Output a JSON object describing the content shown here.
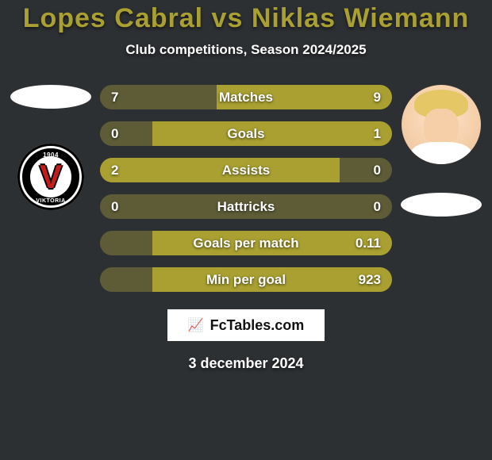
{
  "colors": {
    "background": "#2d3033",
    "title": "#a9a031",
    "subtitle_text": "#ffffff",
    "bar_full": "#a9a031",
    "bar_empty": "#5e5c36",
    "bar_label_text": "#ffffff",
    "bar_value_text": "#ffffff",
    "ellipse_fill": "#ffffff",
    "footer_border": "#2d3033",
    "date_text": "#ffffff"
  },
  "typography": {
    "title_fontsize": 34,
    "subtitle_fontsize": 17,
    "bar_label_fontsize": 17,
    "bar_value_fontsize": 17,
    "date_fontsize": 18
  },
  "header": {
    "title": "Lopes Cabral vs Niklas Wiemann",
    "subtitle": "Club competitions, Season 2024/2025"
  },
  "left_player": {
    "avatar": "blank-ellipse",
    "club": "Viktoria Köln",
    "club_year": "1904"
  },
  "right_player": {
    "avatar": "photo",
    "club_ellipse": "blank-ellipse"
  },
  "bars": [
    {
      "label": "Matches",
      "left_value": "7",
      "right_value": "9",
      "left_pct": 40,
      "right_pct": 60
    },
    {
      "label": "Goals",
      "left_value": "0",
      "right_value": "1",
      "left_pct": 18,
      "right_pct": 82
    },
    {
      "label": "Assists",
      "left_value": "2",
      "right_value": "0",
      "left_pct": 82,
      "right_pct": 18
    },
    {
      "label": "Hattricks",
      "left_value": "0",
      "right_value": "0",
      "left_pct": 50,
      "right_pct": 50
    },
    {
      "label": "Goals per match",
      "left_value": "",
      "right_value": "0.11",
      "left_pct": 18,
      "right_pct": 82
    },
    {
      "label": "Min per goal",
      "left_value": "",
      "right_value": "923",
      "left_pct": 18,
      "right_pct": 82
    }
  ],
  "footer": {
    "brand": "FcTables.com",
    "date": "3 december 2024"
  }
}
